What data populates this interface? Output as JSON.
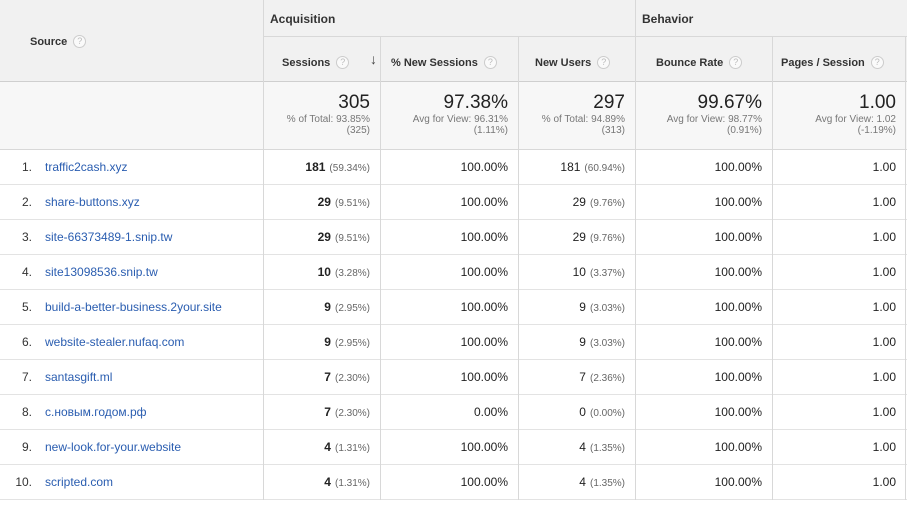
{
  "header": {
    "source_label": "Source",
    "groups": {
      "acquisition": "Acquisition",
      "behavior": "Behavior"
    },
    "columns": {
      "sessions": "Sessions",
      "pct_new_sessions": "% New Sessions",
      "new_users": "New Users",
      "bounce_rate": "Bounce Rate",
      "pages_session": "Pages / Session"
    },
    "help_glyph": "?",
    "sort_glyph": "↓"
  },
  "totals": {
    "sessions": {
      "value": "305",
      "line1": "% of Total: 93.85%",
      "line2": "(325)"
    },
    "pct_new_sessions": {
      "value": "97.38%",
      "line1": "Avg for View: 96.31%",
      "line2": "(1.11%)"
    },
    "new_users": {
      "value": "297",
      "line1": "% of Total: 94.89%",
      "line2": "(313)"
    },
    "bounce_rate": {
      "value": "99.67%",
      "line1": "Avg for View: 98.77%",
      "line2": "(0.91%)"
    },
    "pages_session": {
      "value": "1.00",
      "line1": "Avg for View: 1.02",
      "line2": "(-1.19%)"
    }
  },
  "rows": [
    {
      "rank": "1.",
      "source": "traffic2cash.xyz",
      "sessions": "181",
      "sessions_pct": "(59.34%)",
      "pct_new": "100.00%",
      "new_users": "181",
      "new_users_pct": "(60.94%)",
      "bounce": "100.00%",
      "pages": "1.00"
    },
    {
      "rank": "2.",
      "source": "share-buttons.xyz",
      "sessions": "29",
      "sessions_pct": "(9.51%)",
      "pct_new": "100.00%",
      "new_users": "29",
      "new_users_pct": "(9.76%)",
      "bounce": "100.00%",
      "pages": "1.00"
    },
    {
      "rank": "3.",
      "source": "site-66373489-1.snip.tw",
      "sessions": "29",
      "sessions_pct": "(9.51%)",
      "pct_new": "100.00%",
      "new_users": "29",
      "new_users_pct": "(9.76%)",
      "bounce": "100.00%",
      "pages": "1.00"
    },
    {
      "rank": "4.",
      "source": "site13098536.snip.tw",
      "sessions": "10",
      "sessions_pct": "(3.28%)",
      "pct_new": "100.00%",
      "new_users": "10",
      "new_users_pct": "(3.37%)",
      "bounce": "100.00%",
      "pages": "1.00"
    },
    {
      "rank": "5.",
      "source": "build-a-better-business.2your.site",
      "sessions": "9",
      "sessions_pct": "(2.95%)",
      "pct_new": "100.00%",
      "new_users": "9",
      "new_users_pct": "(3.03%)",
      "bounce": "100.00%",
      "pages": "1.00"
    },
    {
      "rank": "6.",
      "source": "website-stealer.nufaq.com",
      "sessions": "9",
      "sessions_pct": "(2.95%)",
      "pct_new": "100.00%",
      "new_users": "9",
      "new_users_pct": "(3.03%)",
      "bounce": "100.00%",
      "pages": "1.00"
    },
    {
      "rank": "7.",
      "source": "santasgift.ml",
      "sessions": "7",
      "sessions_pct": "(2.30%)",
      "pct_new": "100.00%",
      "new_users": "7",
      "new_users_pct": "(2.36%)",
      "bounce": "100.00%",
      "pages": "1.00"
    },
    {
      "rank": "8.",
      "source": "с.новым.годом.рф",
      "sessions": "7",
      "sessions_pct": "(2.30%)",
      "pct_new": "0.00%",
      "new_users": "0",
      "new_users_pct": "(0.00%)",
      "bounce": "100.00%",
      "pages": "1.00"
    },
    {
      "rank": "9.",
      "source": "new-look.for-your.website",
      "sessions": "4",
      "sessions_pct": "(1.31%)",
      "pct_new": "100.00%",
      "new_users": "4",
      "new_users_pct": "(1.35%)",
      "bounce": "100.00%",
      "pages": "1.00"
    },
    {
      "rank": "10.",
      "source": "scripted.com",
      "sessions": "4",
      "sessions_pct": "(1.31%)",
      "pct_new": "100.00%",
      "new_users": "4",
      "new_users_pct": "(1.35%)",
      "bounce": "100.00%",
      "pages": "1.00"
    }
  ]
}
